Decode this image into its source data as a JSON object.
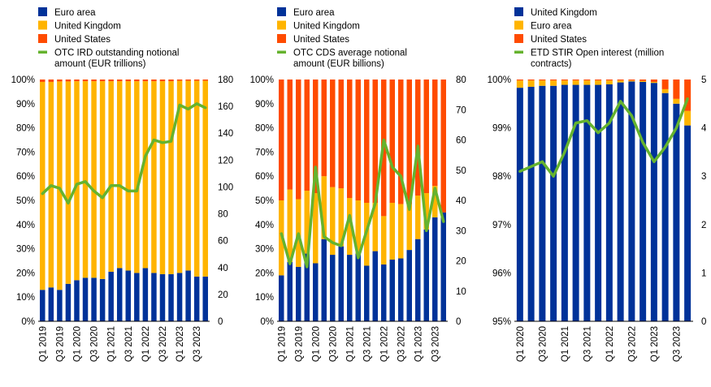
{
  "colors": {
    "euro_area": "#003299",
    "united_kingdom": "#ffb400",
    "united_states": "#ff4b00",
    "line": "#65b32e"
  },
  "chart_data": [
    {
      "type": "bar",
      "stacked": true,
      "percent": true,
      "legend_position": "top-left",
      "legend": [
        "Euro area",
        "United Kingdom",
        "United States",
        "OTC IRD outstanding notional amount (EUR trillions)"
      ],
      "categories": [
        "Q1 2019",
        "Q2 2019",
        "Q3 2019",
        "Q4 2019",
        "Q1 2020",
        "Q2 2020",
        "Q3 2020",
        "Q4 2020",
        "Q1 2021",
        "Q2 2021",
        "Q3 2021",
        "Q4 2021",
        "Q1 2022",
        "Q2 2022",
        "Q3 2022",
        "Q4 2022",
        "Q1 2023",
        "Q2 2023",
        "Q3 2023",
        "Q4 2023"
      ],
      "x_tick_labels": [
        "Q1 2019",
        "Q3 2019",
        "Q1 2020",
        "Q3 2020",
        "Q1 2021",
        "Q3 2021",
        "Q1 2022",
        "Q3 2022",
        "Q1 2023",
        "Q3 2023"
      ],
      "ylim": [
        0,
        100
      ],
      "y_ticks": [
        0,
        10,
        20,
        30,
        40,
        50,
        60,
        70,
        80,
        90,
        100
      ],
      "y_tick_labels": [
        "0%",
        "10%",
        "20%",
        "30%",
        "40%",
        "50%",
        "60%",
        "70%",
        "80%",
        "90%",
        "100%"
      ],
      "y2lim": [
        0,
        180
      ],
      "y2_ticks": [
        0,
        20,
        40,
        60,
        80,
        100,
        120,
        140,
        160,
        180
      ],
      "y2_tick_labels": [
        "0",
        "20",
        "40",
        "60",
        "80",
        "100",
        "120",
        "140",
        "160",
        "180"
      ],
      "series": [
        {
          "name": "Euro area",
          "color_key": "euro_area",
          "values": [
            13,
            14,
            13,
            15.5,
            17,
            18,
            18,
            17.5,
            20.5,
            22,
            21,
            20,
            22,
            20,
            19.5,
            19.5,
            20,
            21,
            18.5,
            18.5
          ]
        },
        {
          "name": "United Kingdom",
          "color_key": "united_kingdom",
          "values": [
            86,
            85,
            86.2,
            83.7,
            82.3,
            81.3,
            81.3,
            81.8,
            78.8,
            77.3,
            78.3,
            79.3,
            77.3,
            79.3,
            79.8,
            79.8,
            79.5,
            78.5,
            81,
            81
          ]
        },
        {
          "name": "United States",
          "color_key": "united_states",
          "values": [
            1,
            1,
            0.8,
            0.8,
            0.7,
            0.7,
            0.7,
            0.7,
            0.7,
            0.7,
            0.7,
            0.7,
            0.7,
            0.7,
            0.7,
            0.7,
            0.5,
            0.5,
            0.5,
            0.5
          ]
        }
      ],
      "line": {
        "name": "OTC IRD outstanding notional amount (EUR trillions)",
        "color_key": "line",
        "axis": "right",
        "values": [
          95,
          101,
          99,
          88,
          102,
          104,
          97,
          92,
          101,
          101,
          97,
          97,
          123,
          135,
          133,
          134,
          161,
          158,
          162,
          159
        ]
      }
    },
    {
      "type": "bar",
      "stacked": true,
      "percent": true,
      "legend_position": "top-left",
      "legend": [
        "Euro area",
        "United Kingdom",
        "United States",
        "OTC CDS average notional amount (EUR billions)"
      ],
      "categories": [
        "Q1 2019",
        "Q2 2019",
        "Q3 2019",
        "Q4 2019",
        "Q1 2020",
        "Q2 2020",
        "Q3 2020",
        "Q4 2020",
        "Q1 2021",
        "Q2 2021",
        "Q3 2021",
        "Q4 2021",
        "Q1 2022",
        "Q2 2022",
        "Q3 2022",
        "Q4 2022",
        "Q1 2023",
        "Q2 2023",
        "Q3 2023",
        "Q4 2023"
      ],
      "x_tick_labels": [
        "Q1 2019",
        "Q3 2019",
        "Q1 2020",
        "Q3 2020",
        "Q1 2021",
        "Q3 2021",
        "Q1 2022",
        "Q3 2022",
        "Q1 2023",
        "Q3 2023"
      ],
      "ylim": [
        0,
        100
      ],
      "y_ticks": [
        0,
        10,
        20,
        30,
        40,
        50,
        60,
        70,
        80,
        90,
        100
      ],
      "y_tick_labels": [
        "0%",
        "10%",
        "20%",
        "30%",
        "40%",
        "50%",
        "60%",
        "70%",
        "80%",
        "90%",
        "100%"
      ],
      "y2lim": [
        0,
        80
      ],
      "y2_ticks": [
        0,
        10,
        20,
        30,
        40,
        50,
        60,
        70,
        80
      ],
      "y2_tick_labels": [
        "0",
        "10",
        "20",
        "30",
        "40",
        "50",
        "60",
        "70",
        "80"
      ],
      "series": [
        {
          "name": "Euro area",
          "color_key": "euro_area",
          "values": [
            19,
            24.5,
            22.5,
            28,
            24,
            34,
            27.5,
            31,
            27.5,
            28,
            23,
            29,
            23.5,
            25.5,
            26,
            29.5,
            34,
            38,
            43,
            45
          ]
        },
        {
          "name": "United Kingdom",
          "color_key": "united_kingdom",
          "values": [
            31,
            30,
            28,
            26,
            29,
            26,
            28,
            24,
            23.5,
            22,
            26,
            20,
            20,
            23.5,
            22.5,
            19,
            18,
            15,
            13,
            0
          ]
        },
        {
          "name": "United States",
          "color_key": "united_states",
          "values": [
            50,
            45.5,
            49.5,
            46,
            47,
            40,
            44.5,
            45,
            49,
            50,
            51,
            51,
            56.5,
            51,
            51.5,
            51.5,
            48,
            47,
            44,
            55
          ]
        }
      ],
      "line": {
        "name": "OTC CDS average notional amount (EUR billions)",
        "color_key": "line",
        "axis": "right",
        "values": [
          29,
          19,
          29,
          18,
          51,
          28,
          26,
          25,
          35,
          21,
          30,
          39,
          60,
          51,
          48,
          37,
          58,
          30,
          44,
          33
        ]
      }
    },
    {
      "type": "bar",
      "stacked": true,
      "percent": true,
      "legend_position": "top-left",
      "legend": [
        "United Kingdom",
        "Euro area",
        "United States",
        "ETD STIR Open interest (million contracts)"
      ],
      "categories": [
        "Q1 2020",
        "Q2 2020",
        "Q3 2020",
        "Q4 2020",
        "Q1 2021",
        "Q2 2021",
        "Q3 2021",
        "Q4 2021",
        "Q1 2022",
        "Q2 2022",
        "Q3 2022",
        "Q4 2022",
        "Q1 2023",
        "Q2 2023",
        "Q3 2023",
        "Q4 2023"
      ],
      "x_tick_labels": [
        "Q1 2020",
        "Q3 2020",
        "Q1 2021",
        "Q3 2021",
        "Q1 2022",
        "Q3 2022",
        "Q1 2023",
        "Q3 2023"
      ],
      "ylim": [
        95,
        100
      ],
      "y_ticks": [
        95,
        96,
        97,
        98,
        99,
        100
      ],
      "y_tick_labels": [
        "95%",
        "96%",
        "97%",
        "98%",
        "99%",
        "100%"
      ],
      "y2lim": [
        0,
        5
      ],
      "y2_ticks": [
        0,
        1,
        2,
        3,
        4,
        5
      ],
      "y2_tick_labels": [
        "0",
        "1",
        "2",
        "3",
        "4",
        "5"
      ],
      "series": [
        {
          "name": "United Kingdom",
          "color_key": "euro_area",
          "values": [
            99.83,
            99.85,
            99.87,
            99.87,
            99.89,
            99.89,
            99.89,
            99.89,
            99.9,
            99.94,
            99.96,
            99.95,
            99.93,
            99.72,
            99.5,
            99.05
          ]
        },
        {
          "name": "Euro area",
          "color_key": "united_kingdom",
          "values": [
            0.15,
            0.13,
            0.11,
            0.11,
            0.09,
            0.09,
            0.09,
            0.09,
            0.08,
            0.04,
            0.02,
            0.02,
            0.02,
            0.08,
            0.1,
            0.3
          ]
        },
        {
          "name": "United States",
          "color_key": "united_states",
          "values": [
            0.02,
            0.02,
            0.02,
            0.02,
            0.02,
            0.02,
            0.02,
            0.02,
            0.02,
            0.02,
            0.02,
            0.03,
            0.05,
            0.2,
            0.4,
            0.65
          ]
        }
      ],
      "line": {
        "name": "ETD STIR Open interest (million contracts)",
        "color_key": "line",
        "axis": "right",
        "values": [
          3.1,
          3.2,
          3.3,
          3.0,
          3.5,
          4.1,
          4.15,
          3.9,
          4.1,
          4.55,
          4.25,
          3.7,
          3.3,
          3.6,
          4.0,
          4.6
        ]
      }
    }
  ]
}
